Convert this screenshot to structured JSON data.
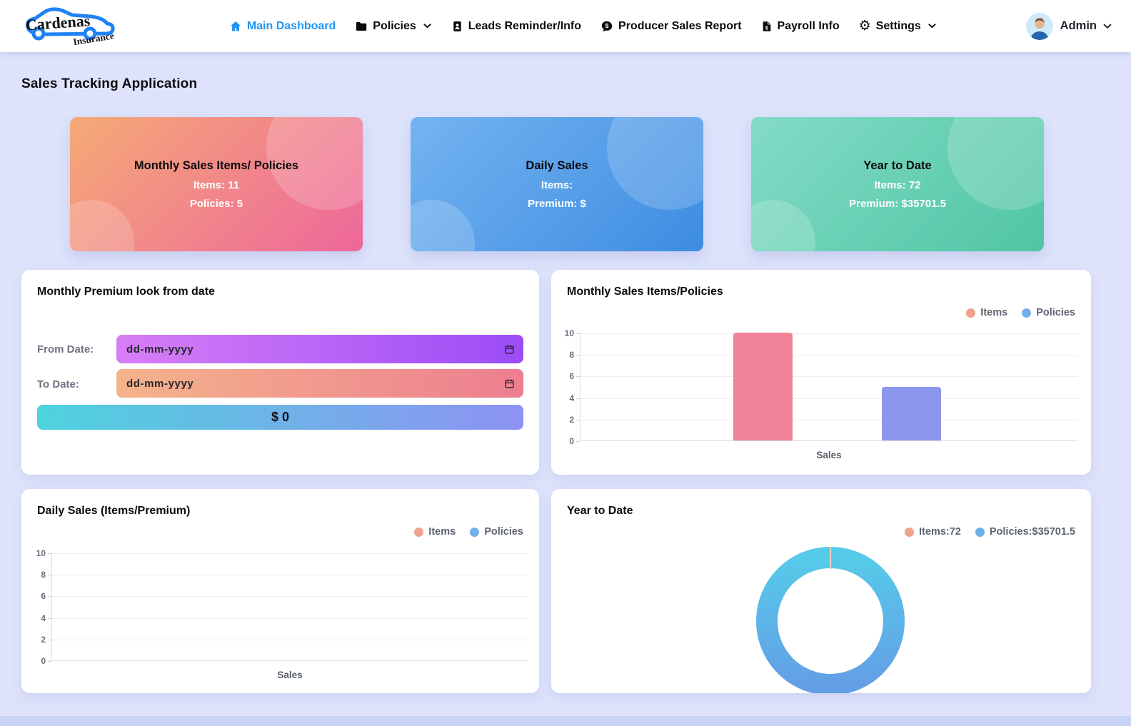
{
  "navbar": {
    "brand": {
      "name": "Cardenas",
      "subname": "Insurance"
    },
    "items": [
      {
        "label": "Main Dashboard",
        "icon": "home",
        "active": true,
        "dropdown": false
      },
      {
        "label": "Policies",
        "icon": "folder",
        "active": false,
        "dropdown": true
      },
      {
        "label": "Leads Reminder/Info",
        "icon": "leads-card",
        "active": false,
        "dropdown": false
      },
      {
        "label": "Producer Sales Report",
        "icon": "dollar-comment",
        "active": false,
        "dropdown": false
      },
      {
        "label": "Payroll Info",
        "icon": "payroll-file",
        "active": false,
        "dropdown": false
      },
      {
        "label": "Settings",
        "icon": "gear",
        "active": false,
        "dropdown": true
      }
    ],
    "user": {
      "name": "Admin"
    }
  },
  "page_title": "Sales Tracking Application",
  "summary_cards": [
    {
      "title": "Monthly Sales Items/ Policies",
      "lines": [
        "Items: 11",
        "Policies: 5"
      ],
      "gradient": [
        "#f5aa76",
        "#ee679b"
      ]
    },
    {
      "title": "Daily Sales",
      "lines": [
        "Items:",
        "Premium: $"
      ],
      "gradient": [
        "#74b4f0",
        "#3d8ce2"
      ]
    },
    {
      "title": "Year to Date",
      "lines": [
        "Items: 72",
        "Premium: $35701.5"
      ],
      "gradient": [
        "#83dcc6",
        "#50c5a4"
      ]
    }
  ],
  "premium_lookup": {
    "title": "Monthly Premium look from date",
    "from_label": "From Date:",
    "to_label": "To Date:",
    "date_placeholder": "dd-mm-yyyy",
    "amount_label": "$ 0"
  },
  "chart_data": [
    {
      "id": "monthly_sales",
      "type": "bar",
      "title": "Monthly Sales Items/Policies",
      "xlabel": "Sales",
      "categories": [
        "Sales"
      ],
      "ylim": [
        0,
        10
      ],
      "yticks": [
        0,
        2,
        4,
        6,
        8,
        10
      ],
      "grid": true,
      "legend_position": "top-right",
      "series": [
        {
          "name": "Items",
          "value": 11,
          "color": "#ef8398",
          "legend_color": "#f0a28a"
        },
        {
          "name": "Policies",
          "value": 5,
          "color": "#8c96ee",
          "legend_color": "#73b0ea"
        }
      ]
    },
    {
      "id": "daily_sales",
      "type": "bar",
      "title": "Daily Sales (Items/Premium)",
      "xlabel": "Sales",
      "categories": [
        "Sales"
      ],
      "ylim": [
        0,
        10
      ],
      "yticks": [
        0,
        2,
        4,
        6,
        8,
        10
      ],
      "grid": true,
      "legend_position": "top-right",
      "series": [
        {
          "name": "Items",
          "value": null,
          "color": "#ef8398",
          "legend_color": "#f0a28a"
        },
        {
          "name": "Policies",
          "value": null,
          "color": "#8c96ee",
          "legend_color": "#73b0ea"
        }
      ]
    },
    {
      "id": "year_to_date",
      "type": "doughnut",
      "title": "Year to Date",
      "legend_position": "top-right",
      "gradient": [
        "#56cae9",
        "#639fe6"
      ],
      "slices": [
        {
          "name": "Items:72",
          "value": 72,
          "legend_color": "#f0a28a",
          "color": "#e9c9b8"
        },
        {
          "name": "Policies:$35701.5",
          "value": 35701.5,
          "legend_color": "#6db1ea",
          "color": "gradient"
        }
      ]
    }
  ],
  "colors": {
    "page_bg": "#dee3fb",
    "navbar_bg": "#ffffff",
    "active_link": "#2196f3",
    "nav_text": "#0b0b0e",
    "input_from_start": "#d77ef6",
    "input_from_end": "#9b4cf6",
    "input_to_start": "#f5b38b",
    "input_to_end": "#ed7e90",
    "amount_start": "#4ed3de",
    "amount_end": "#8e92f2",
    "footer_strip": "#c9d3f5",
    "logo_blue": "#1d82f5"
  }
}
